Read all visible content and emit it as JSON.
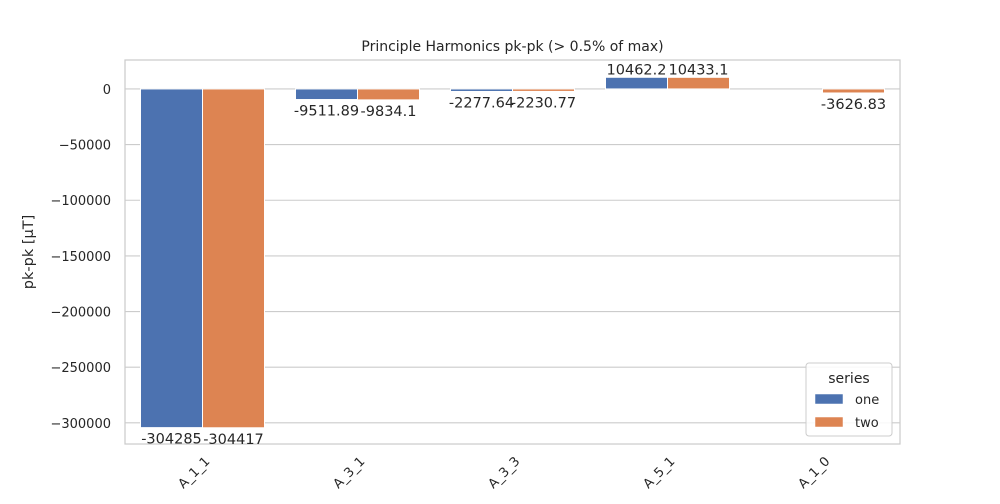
{
  "chart_data": {
    "type": "bar",
    "title": "Principle Harmonics pk-pk (> 0.5% of max)",
    "xlabel": "",
    "ylabel": "pk-pk [µT]",
    "categories": [
      "A_1_1",
      "A_3_1",
      "A_3_3",
      "A_5_1",
      "A_1_0"
    ],
    "series": [
      {
        "name": "one",
        "color": "#4c72b0",
        "values": [
          -304285,
          -9511.89,
          -2277.64,
          10462.2,
          null
        ],
        "labels": [
          "-304285",
          "-9511.89",
          "-2277.64",
          "10462.2",
          ""
        ]
      },
      {
        "name": "two",
        "color": "#dd8452",
        "values": [
          -304417,
          -9834.1,
          -2230.77,
          10433.1,
          -3626.83
        ],
        "labels": [
          "-304417",
          "-9834.1",
          "-2230.77",
          "10433.1",
          "-3626.83"
        ]
      }
    ],
    "ylim": [
      -319000,
      26000
    ],
    "yticks": [
      0,
      -50000,
      -100000,
      -150000,
      -200000,
      -250000,
      -300000
    ],
    "ytick_labels": [
      "0",
      "−50000",
      "−100000",
      "−150000",
      "−200000",
      "−250000",
      "−300000"
    ],
    "grid": true,
    "legend": {
      "title": "series",
      "placement": "lower-right"
    }
  }
}
